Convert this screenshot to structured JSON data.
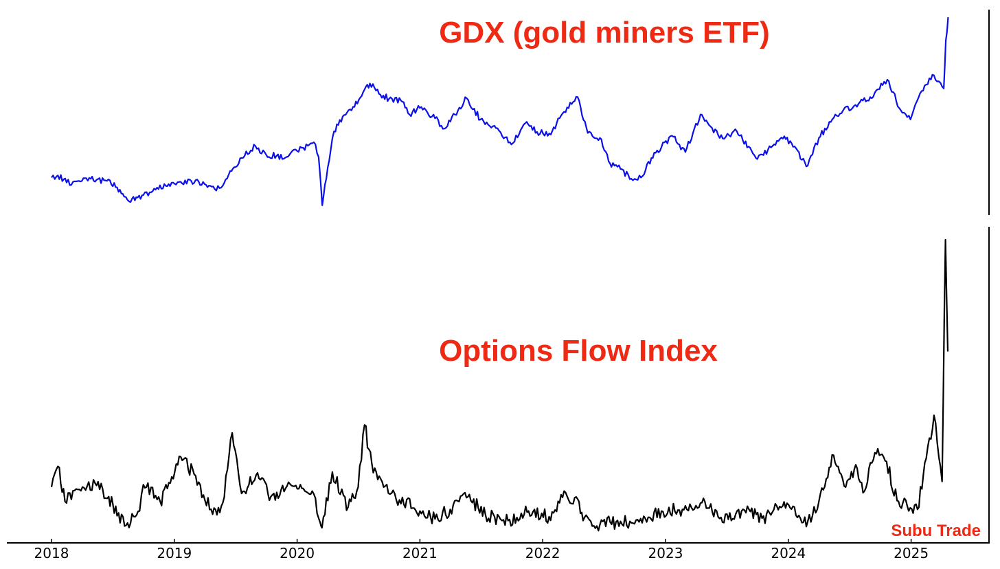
{
  "colors": {
    "title": "#ee2a14",
    "gdx_line": "#0a10e6",
    "flow_line": "#000000",
    "axis": "#000000",
    "background": "#ffffff"
  },
  "watermark": "Subu Trade",
  "chart_data": [
    {
      "type": "line",
      "title": "GDX (gold miners ETF)",
      "xlabel": "",
      "ylabel": "",
      "y_axis_labels_shown": false,
      "grid": false,
      "series": [
        {
          "color": "#0a10e6",
          "points": [
            [
              "2018-01-01",
              23.0
            ],
            [
              "2018-01-20",
              23.4
            ],
            [
              "2018-02-15",
              22.1
            ],
            [
              "2018-03-15",
              22.3
            ],
            [
              "2018-04-10",
              22.9
            ],
            [
              "2018-05-15",
              22.6
            ],
            [
              "2018-06-15",
              22.4
            ],
            [
              "2018-07-15",
              21.2
            ],
            [
              "2018-08-05",
              19.5
            ],
            [
              "2018-08-20",
              18.6
            ],
            [
              "2018-09-10",
              19.4
            ],
            [
              "2018-10-01",
              19.8
            ],
            [
              "2018-10-20",
              20.3
            ],
            [
              "2018-11-15",
              20.9
            ],
            [
              "2018-12-15",
              21.8
            ],
            [
              "2019-01-15",
              22.2
            ],
            [
              "2019-02-20",
              22.4
            ],
            [
              "2019-04-01",
              21.8
            ],
            [
              "2019-05-01",
              20.9
            ],
            [
              "2019-05-25",
              21.5
            ],
            [
              "2019-06-20",
              24.2
            ],
            [
              "2019-07-20",
              26.6
            ],
            [
              "2019-08-30",
              28.8
            ],
            [
              "2019-10-01",
              27.2
            ],
            [
              "2019-11-01",
              27.0
            ],
            [
              "2019-12-01",
              26.8
            ],
            [
              "2020-01-01",
              27.9
            ],
            [
              "2020-02-20",
              29.5
            ],
            [
              "2020-03-05",
              26.8
            ],
            [
              "2020-03-16",
              17.9
            ],
            [
              "2020-04-01",
              24.8
            ],
            [
              "2020-04-20",
              31.5
            ],
            [
              "2020-05-20",
              34.5
            ],
            [
              "2020-06-20",
              36.0
            ],
            [
              "2020-07-20",
              39.2
            ],
            [
              "2020-08-05",
              40.3
            ],
            [
              "2020-09-01",
              38.4
            ],
            [
              "2020-10-01",
              37.5
            ],
            [
              "2020-11-05",
              37.2
            ],
            [
              "2020-12-01",
              34.6
            ],
            [
              "2021-01-05",
              36.0
            ],
            [
              "2021-02-15",
              33.9
            ],
            [
              "2021-03-15",
              32.0
            ],
            [
              "2021-04-15",
              34.6
            ],
            [
              "2021-05-20",
              37.6
            ],
            [
              "2021-06-30",
              33.7
            ],
            [
              "2021-08-15",
              32.1
            ],
            [
              "2021-09-30",
              29.1
            ],
            [
              "2021-11-10",
              33.0
            ],
            [
              "2021-12-15",
              31.4
            ],
            [
              "2022-01-25",
              30.9
            ],
            [
              "2022-03-01",
              34.8
            ],
            [
              "2022-04-15",
              37.8
            ],
            [
              "2022-05-15",
              31.2
            ],
            [
              "2022-06-20",
              30.3
            ],
            [
              "2022-07-20",
              25.6
            ],
            [
              "2022-08-20",
              24.6
            ],
            [
              "2022-09-26",
              22.5
            ],
            [
              "2022-10-25",
              23.3
            ],
            [
              "2022-11-20",
              26.6
            ],
            [
              "2022-12-20",
              28.6
            ],
            [
              "2023-01-20",
              30.7
            ],
            [
              "2023-03-01",
              27.7
            ],
            [
              "2023-04-15",
              34.6
            ],
            [
              "2023-05-15",
              32.4
            ],
            [
              "2023-06-20",
              30.2
            ],
            [
              "2023-08-01",
              31.5
            ],
            [
              "2023-10-01",
              26.4
            ],
            [
              "2023-11-15",
              28.8
            ],
            [
              "2023-12-20",
              30.6
            ],
            [
              "2024-02-28",
              25.2
            ],
            [
              "2024-04-01",
              30.3
            ],
            [
              "2024-05-20",
              34.6
            ],
            [
              "2024-07-15",
              36.2
            ],
            [
              "2024-09-01",
              37.8
            ],
            [
              "2024-10-22",
              41.0
            ],
            [
              "2024-12-01",
              35.4
            ],
            [
              "2024-12-30",
              33.7
            ],
            [
              "2025-02-01",
              38.9
            ],
            [
              "2025-03-10",
              41.8
            ],
            [
              "2025-04-08",
              39.4
            ],
            [
              "2025-04-14",
              48.2
            ],
            [
              "2025-04-21",
              52.5
            ]
          ]
        }
      ]
    },
    {
      "type": "line",
      "title": "Options Flow Index",
      "xlabel": "",
      "ylabel": "",
      "y_axis_labels_shown": false,
      "grid": false,
      "x_tick_labels": [
        "2018",
        "2019",
        "2020",
        "2021",
        "2022",
        "2023",
        "2024",
        "2025"
      ],
      "series": [
        {
          "color": "#000000",
          "points": [
            [
              "2018-01-01",
              0.5
            ],
            [
              "2018-01-20",
              0.76
            ],
            [
              "2018-02-10",
              0.32
            ],
            [
              "2018-03-20",
              0.47
            ],
            [
              "2018-05-15",
              0.52
            ],
            [
              "2018-06-20",
              0.38
            ],
            [
              "2018-07-15",
              0.14
            ],
            [
              "2018-08-15",
              0.05
            ],
            [
              "2018-09-20",
              0.2
            ],
            [
              "2018-10-01",
              0.53
            ],
            [
              "2018-11-20",
              0.32
            ],
            [
              "2018-12-20",
              0.55
            ],
            [
              "2019-01-20",
              0.88
            ],
            [
              "2019-03-01",
              0.66
            ],
            [
              "2019-04-25",
              0.16
            ],
            [
              "2019-05-25",
              0.3
            ],
            [
              "2019-06-22",
              1.18
            ],
            [
              "2019-07-20",
              0.42
            ],
            [
              "2019-09-01",
              0.65
            ],
            [
              "2019-10-15",
              0.38
            ],
            [
              "2019-12-15",
              0.52
            ],
            [
              "2020-02-15",
              0.45
            ],
            [
              "2020-03-10",
              0.05
            ],
            [
              "2020-03-15",
              -0.01
            ],
            [
              "2020-04-15",
              0.69
            ],
            [
              "2020-06-01",
              0.25
            ],
            [
              "2020-07-01",
              0.5
            ],
            [
              "2020-07-20",
              1.28
            ],
            [
              "2020-08-15",
              0.68
            ],
            [
              "2020-09-15",
              0.5
            ],
            [
              "2020-11-01",
              0.34
            ],
            [
              "2021-01-01",
              0.2
            ],
            [
              "2021-02-15",
              0.1
            ],
            [
              "2021-04-01",
              0.22
            ],
            [
              "2021-05-15",
              0.43
            ],
            [
              "2021-07-15",
              0.15
            ],
            [
              "2021-09-20",
              0.08
            ],
            [
              "2021-11-20",
              0.2
            ],
            [
              "2022-01-20",
              0.13
            ],
            [
              "2022-03-01",
              0.37
            ],
            [
              "2022-04-15",
              0.35
            ],
            [
              "2022-05-01",
              0.08
            ],
            [
              "2022-06-20",
              0.03
            ],
            [
              "2022-08-20",
              0.07
            ],
            [
              "2022-10-01",
              0.04
            ],
            [
              "2022-11-15",
              0.12
            ],
            [
              "2022-12-20",
              0.2
            ],
            [
              "2023-02-20",
              0.22
            ],
            [
              "2023-04-15",
              0.3
            ],
            [
              "2023-06-15",
              0.12
            ],
            [
              "2023-08-15",
              0.2
            ],
            [
              "2023-10-15",
              0.11
            ],
            [
              "2023-12-15",
              0.26
            ],
            [
              "2024-02-28",
              0.07
            ],
            [
              "2024-04-01",
              0.32
            ],
            [
              "2024-05-15",
              0.9
            ],
            [
              "2024-06-20",
              0.5
            ],
            [
              "2024-07-20",
              0.78
            ],
            [
              "2024-08-15",
              0.45
            ],
            [
              "2024-09-15",
              0.93
            ],
            [
              "2024-10-20",
              0.82
            ],
            [
              "2024-11-20",
              0.33
            ],
            [
              "2025-01-20",
              0.22
            ],
            [
              "2025-02-15",
              0.86
            ],
            [
              "2025-03-10",
              1.4
            ],
            [
              "2025-04-03",
              0.57
            ],
            [
              "2025-04-10",
              2.8
            ],
            [
              "2025-04-13",
              3.6
            ],
            [
              "2025-04-20",
              2.2
            ]
          ]
        }
      ]
    }
  ]
}
